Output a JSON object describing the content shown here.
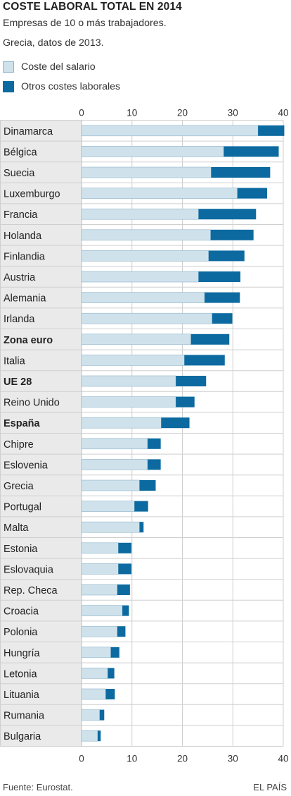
{
  "header": {
    "title": "COSTE LABORAL TOTAL EN 2014",
    "subtitle_1": "Empresas de 10 o más trabajadores.",
    "subtitle_2": "Grecia, datos de 2013."
  },
  "legend": [
    {
      "label": "Coste del salario",
      "color": "#cfe2ec"
    },
    {
      "label": "Otros costes laborales",
      "color": "#0c6aa0"
    }
  ],
  "footer": {
    "source": "Fuente: Eurostat.",
    "credit": "EL PAÍS"
  },
  "chart_data": {
    "type": "bar",
    "orientation": "horizontal",
    "stacked": true,
    "xlim": [
      0,
      40
    ],
    "xticks": [
      0,
      10,
      20,
      30,
      40
    ],
    "grid": true,
    "categories": [
      "Dinamarca",
      "Bélgica",
      "Suecia",
      "Luxemburgo",
      "Francia",
      "Holanda",
      "Finlandia",
      "Austria",
      "Alemania",
      "Irlanda",
      "Zona euro",
      "Italia",
      "UE 28",
      "Reino Unido",
      "España",
      "Chipre",
      "Eslovenia",
      "Grecia",
      "Portugal",
      "Malta",
      "Estonia",
      "Eslovaquia",
      "Rep. Checa",
      "Croacia",
      "Polonia",
      "Hungría",
      "Letonia",
      "Lituania",
      "Rumania",
      "Bulgaria"
    ],
    "highlighted": [
      "Zona euro",
      "UE 28",
      "España"
    ],
    "series": [
      {
        "name": "Coste del salario",
        "color": "#cfe2ec",
        "values": [
          35.0,
          28.2,
          25.7,
          30.9,
          23.2,
          25.6,
          25.2,
          23.2,
          24.4,
          25.9,
          21.7,
          20.4,
          18.7,
          18.7,
          15.8,
          13.1,
          13.1,
          11.5,
          10.5,
          11.5,
          7.3,
          7.3,
          7.1,
          8.1,
          7.1,
          5.8,
          5.2,
          4.8,
          3.6,
          3.2
        ],
        "stroke": "#8fb4c9"
      },
      {
        "name": "Otros costes laborales",
        "color": "#0c6aa0",
        "values": [
          5.2,
          10.9,
          11.7,
          5.9,
          11.4,
          8.5,
          7.1,
          8.3,
          7.0,
          4.0,
          7.6,
          8.0,
          6.0,
          3.7,
          5.6,
          2.6,
          2.6,
          3.2,
          2.7,
          0.8,
          2.6,
          2.6,
          2.5,
          1.3,
          1.6,
          1.7,
          1.3,
          1.8,
          0.9,
          0.6
        ]
      }
    ]
  }
}
